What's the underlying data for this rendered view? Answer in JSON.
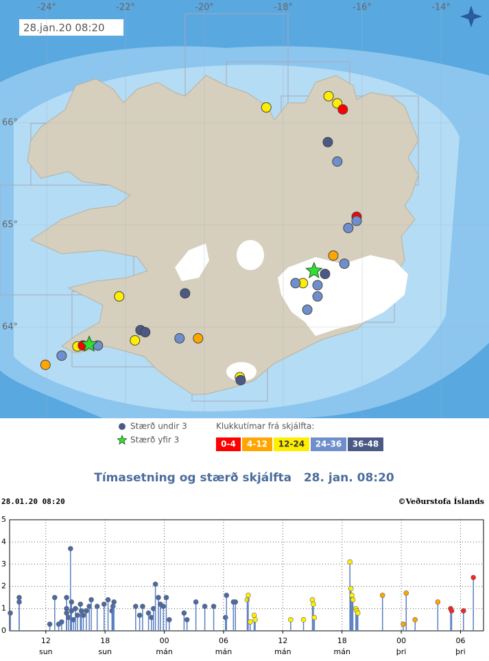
{
  "map": {
    "timestamp": "28.jan.20 08:20",
    "lonticks": [
      {
        "value": -24,
        "label": "-24°"
      },
      {
        "value": -22,
        "label": "-22°"
      },
      {
        "value": -20,
        "label": "-20°"
      },
      {
        "value": -18,
        "label": "-18°"
      },
      {
        "value": -16,
        "label": "-16°"
      },
      {
        "value": -14,
        "label": "-14°"
      }
    ],
    "latticks": [
      {
        "value": 66,
        "label": "66°"
      },
      {
        "value": 65,
        "label": "65°"
      },
      {
        "value": 64,
        "label": "64°"
      }
    ],
    "points": [
      {
        "lon": -18.43,
        "lat": 66.15,
        "color": "#ffee00",
        "marker": "circle"
      },
      {
        "lon": -16.85,
        "lat": 66.26,
        "color": "#ffee00",
        "marker": "circle"
      },
      {
        "lon": -16.63,
        "lat": 66.19,
        "color": "#ffee00",
        "marker": "circle"
      },
      {
        "lon": -16.49,
        "lat": 66.13,
        "color": "#ff0000",
        "marker": "circle"
      },
      {
        "lon": -16.87,
        "lat": 65.81,
        "color": "#4a5a85",
        "marker": "circle"
      },
      {
        "lon": -16.63,
        "lat": 65.62,
        "color": "#6f8fcc",
        "marker": "circle"
      },
      {
        "lon": -16.14,
        "lat": 65.08,
        "color": "#ff0000",
        "marker": "circle"
      },
      {
        "lon": -16.14,
        "lat": 65.04,
        "color": "#6f8fcc",
        "marker": "circle"
      },
      {
        "lon": -16.35,
        "lat": 64.97,
        "color": "#6f8fcc",
        "marker": "circle"
      },
      {
        "lon": -16.73,
        "lat": 64.7,
        "color": "#ffa500",
        "marker": "circle"
      },
      {
        "lon": -16.45,
        "lat": 64.62,
        "color": "#6f8fcc",
        "marker": "circle"
      },
      {
        "lon": -16.94,
        "lat": 64.52,
        "color": "#4a5a85",
        "marker": "circle"
      },
      {
        "lon": -17.5,
        "lat": 64.43,
        "color": "#ffee00",
        "marker": "circle"
      },
      {
        "lon": -17.69,
        "lat": 64.43,
        "color": "#6f8fcc",
        "marker": "circle"
      },
      {
        "lon": -17.13,
        "lat": 64.41,
        "color": "#6f8fcc",
        "marker": "circle"
      },
      {
        "lon": -17.13,
        "lat": 64.3,
        "color": "#6f8fcc",
        "marker": "circle"
      },
      {
        "lon": -17.39,
        "lat": 64.17,
        "color": "#6f8fcc",
        "marker": "circle"
      },
      {
        "lon": -17.22,
        "lat": 64.55,
        "color": "#33dd33",
        "marker": "star"
      },
      {
        "lon": -20.49,
        "lat": 64.33,
        "color": "#4a5a85",
        "marker": "circle"
      },
      {
        "lon": -22.16,
        "lat": 64.3,
        "color": "#ffee00",
        "marker": "circle"
      },
      {
        "lon": -21.62,
        "lat": 63.97,
        "color": "#4a5a85",
        "marker": "circle"
      },
      {
        "lon": -21.5,
        "lat": 63.95,
        "color": "#4a5a85",
        "marker": "circle"
      },
      {
        "lon": -21.76,
        "lat": 63.87,
        "color": "#ffee00",
        "marker": "circle"
      },
      {
        "lon": -20.63,
        "lat": 63.89,
        "color": "#6f8fcc",
        "marker": "circle"
      },
      {
        "lon": -20.16,
        "lat": 63.89,
        "color": "#ffa500",
        "marker": "circle"
      },
      {
        "lon": -19.1,
        "lat": 63.51,
        "color": "#ffee00",
        "marker": "circle"
      },
      {
        "lon": -19.08,
        "lat": 63.48,
        "color": "#4a5a85",
        "marker": "circle"
      },
      {
        "lon": -23.22,
        "lat": 63.81,
        "color": "#ffee00",
        "marker": "circle"
      },
      {
        "lon": -23.08,
        "lat": 63.82,
        "color": "#ff0000",
        "marker": "circle"
      },
      {
        "lon": -22.7,
        "lat": 63.82,
        "color": "#6f8fcc",
        "marker": "circle"
      },
      {
        "lon": -22.92,
        "lat": 63.83,
        "color": "#33dd33",
        "marker": "star"
      },
      {
        "lon": -23.62,
        "lat": 63.72,
        "color": "#6f8fcc",
        "marker": "circle"
      },
      {
        "lon": -24.03,
        "lat": 63.63,
        "color": "#ffa500",
        "marker": "circle"
      }
    ],
    "legend_small": "Stærð undir 3",
    "legend_large": "Stærð yfir 3",
    "age_title": "Klukkutímar frá skjálfta:",
    "age_legend": [
      {
        "label": "0-4",
        "color": "#ff0000"
      },
      {
        "label": "4-12",
        "color": "#ffa500"
      },
      {
        "label": "12-24",
        "color": "#ffee00"
      },
      {
        "label": "24-36",
        "color": "#6f8fcc"
      },
      {
        "label": "36-48",
        "color": "#4a5a85"
      }
    ]
  },
  "chart_data": {
    "type": "stem",
    "title": "Tímasetning og stærð skjálfta   28. jan. 08:20",
    "header_left": "28.01.20 08:20",
    "header_right": "©Veðurstofa Íslands",
    "xlim": [
      8.33,
      56.33
    ],
    "xticks": [
      {
        "value": 12,
        "label": "12"
      },
      {
        "value": 18,
        "label": "18"
      },
      {
        "value": 24,
        "label": "00"
      },
      {
        "value": 30,
        "label": "06"
      },
      {
        "value": 36,
        "label": "12"
      },
      {
        "value": 42,
        "label": "18"
      },
      {
        "value": 48,
        "label": "00"
      },
      {
        "value": 54,
        "label": "06"
      }
    ],
    "xtick_days": [
      "sun",
      "sun",
      "mán",
      "mán",
      "mán",
      "mán",
      "þri",
      "þri"
    ],
    "ylim": [
      0,
      5
    ],
    "yticks": [
      0,
      1,
      2,
      3,
      4,
      5
    ],
    "grid": true,
    "stem_color": "#5a7fc0",
    "x": [
      8.4,
      9.3,
      9.3,
      12.4,
      12.9,
      13.3,
      13.6,
      14.1,
      14.1,
      14.1,
      14.3,
      14.5,
      14.6,
      14.6,
      14.8,
      15.0,
      15.2,
      15.5,
      15.6,
      15.8,
      16.1,
      16.4,
      16.6,
      17.2,
      17.9,
      18.3,
      18.7,
      18.8,
      18.9,
      21.1,
      21.5,
      21.8,
      22.4,
      22.7,
      22.9,
      23.1,
      23.4,
      23.6,
      23.9,
      24.2,
      24.5,
      26.0,
      26.3,
      27.2,
      28.1,
      29.0,
      30.2,
      30.3,
      31.0,
      31.2,
      32.4,
      32.5,
      32.7,
      33.1,
      33.2,
      36.8,
      38.1,
      39.0,
      39.1,
      39.2,
      42.8,
      42.9,
      43.0,
      43.1,
      43.4,
      43.5,
      43.6,
      46.1,
      48.2,
      48.5,
      49.4,
      51.7,
      53.0,
      53.1,
      54.3,
      55.3
    ],
    "values": [
      0.8,
      1.5,
      1.3,
      0.3,
      1.5,
      0.3,
      0.4,
      1.5,
      1.0,
      0.8,
      0.6,
      3.7,
      1.3,
      0.9,
      0.5,
      1.0,
      0.7,
      1.2,
      0.9,
      0.7,
      0.9,
      1.1,
      1.4,
      1.1,
      1.2,
      1.4,
      0.9,
      1.1,
      1.3,
      1.1,
      0.7,
      1.1,
      0.8,
      0.6,
      1.0,
      2.1,
      1.5,
      1.2,
      1.1,
      1.5,
      0.5,
      0.8,
      0.5,
      1.3,
      1.1,
      1.1,
      0.6,
      1.6,
      1.3,
      1.3,
      1.4,
      1.6,
      0.4,
      0.7,
      0.5,
      0.5,
      0.5,
      1.4,
      1.2,
      0.6,
      3.1,
      1.9,
      1.6,
      1.4,
      1.0,
      0.9,
      0.8,
      1.6,
      0.3,
      1.7,
      0.5,
      1.3,
      1.0,
      0.9,
      0.9,
      2.4
    ],
    "colors": [
      "#4a6aa5",
      "#4a6aa5",
      "#4a6aa5",
      "#4a6aa5",
      "#4a6aa5",
      "#4a6aa5",
      "#4a6aa5",
      "#4a6aa5",
      "#4a6aa5",
      "#4a6aa5",
      "#4a6aa5",
      "#4a6aa5",
      "#4a6aa5",
      "#4a6aa5",
      "#4a6aa5",
      "#4a6aa5",
      "#4a6aa5",
      "#4a6aa5",
      "#4a6aa5",
      "#4a6aa5",
      "#4a6aa5",
      "#4a6aa5",
      "#4a6aa5",
      "#4a6aa5",
      "#4a6aa5",
      "#4a6aa5",
      "#4a6aa5",
      "#4a6aa5",
      "#4a6aa5",
      "#4a6aa5",
      "#4a6aa5",
      "#4a6aa5",
      "#4a6aa5",
      "#4a6aa5",
      "#4a6aa5",
      "#4a6aa5",
      "#4a6aa5",
      "#4a6aa5",
      "#4a6aa5",
      "#4a6aa5",
      "#4a6aa5",
      "#4a6aa5",
      "#4a6aa5",
      "#4a6aa5",
      "#4a6aa5",
      "#4a6aa5",
      "#4a6aa5",
      "#4a6aa5",
      "#4a6aa5",
      "#4a6aa5",
      "#ffee00",
      "#ffee00",
      "#ffee00",
      "#ffee00",
      "#ffee00",
      "#ffee00",
      "#ffee00",
      "#ffee00",
      "#ffee00",
      "#ffee00",
      "#ffee00",
      "#ffee00",
      "#ffee00",
      "#ffee00",
      "#ffee00",
      "#ffee00",
      "#ffee00",
      "#ffa500",
      "#ffa500",
      "#ffa500",
      "#ffa500",
      "#ffa500",
      "#ff2020",
      "#ff2020",
      "#ff2020",
      "#ff2020"
    ]
  }
}
